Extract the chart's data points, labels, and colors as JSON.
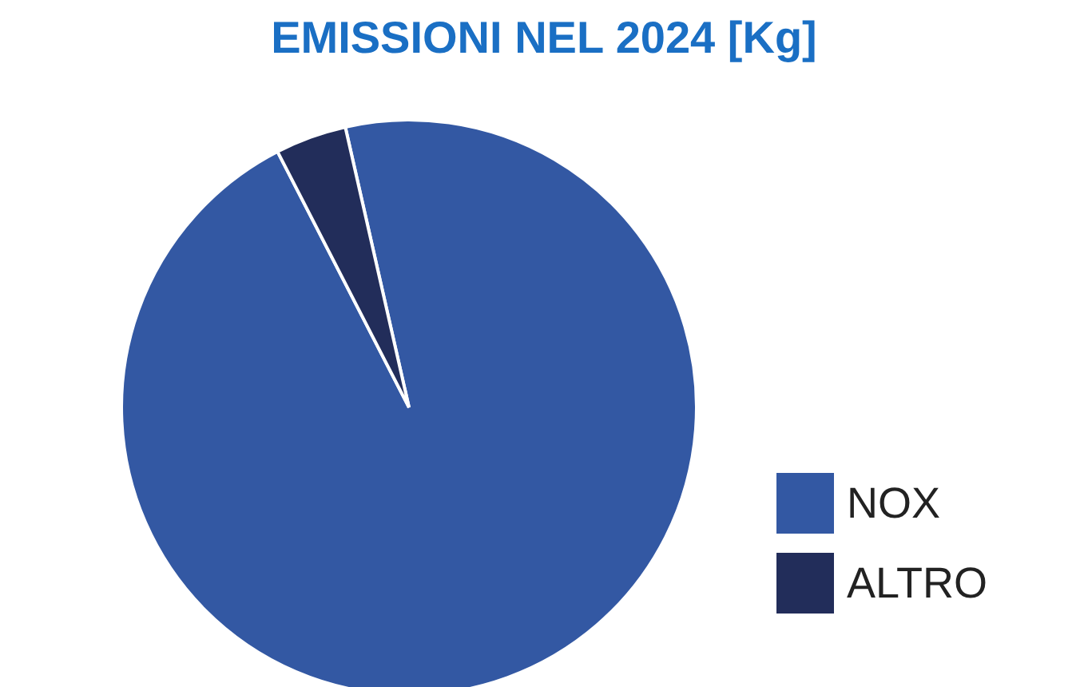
{
  "chart_data": {
    "type": "pie",
    "title": "EMISSIONI NEL 2024 [Kg]",
    "categories": [
      "NOX",
      "ALTRO"
    ],
    "values": [
      96,
      4
    ],
    "colors": [
      "#3358a3",
      "#222d5a"
    ],
    "legend": "bottom right"
  }
}
